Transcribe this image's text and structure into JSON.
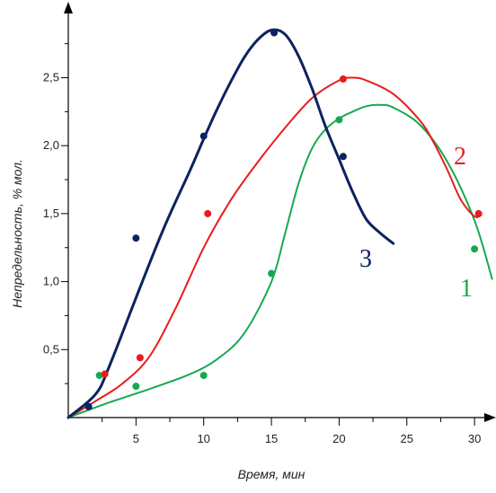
{
  "chart_data": {
    "type": "line",
    "title": "",
    "xlabel": "Время, мин",
    "ylabel": "Непредельность, % мол.",
    "xlim": [
      0,
      31.5
    ],
    "ylim": [
      0,
      2.95
    ],
    "x_ticks": [
      {
        "value": 5,
        "label": "5"
      },
      {
        "value": 10,
        "label": "10"
      },
      {
        "value": 15,
        "label": "15"
      },
      {
        "value": 20,
        "label": "20"
      },
      {
        "value": 25,
        "label": "25"
      },
      {
        "value": 30,
        "label": "30"
      }
    ],
    "x_minor_step": 2.5,
    "y_ticks": [
      {
        "value": 0.5,
        "label": "0,5"
      },
      {
        "value": 1.0,
        "label": "1,0"
      },
      {
        "value": 1.5,
        "label": "1,5"
      },
      {
        "value": 2.0,
        "label": "2,0"
      },
      {
        "value": 2.5,
        "label": "2,5"
      }
    ],
    "y_minor_step": 0.25,
    "grid": false,
    "series": [
      {
        "name": "1",
        "color": "#18a850",
        "points": [
          [
            2.3,
            0.31
          ],
          [
            5.0,
            0.23
          ],
          [
            10.0,
            0.31
          ],
          [
            15.0,
            1.06
          ],
          [
            20.0,
            2.19
          ],
          [
            30.0,
            1.24
          ]
        ],
        "curve": [
          [
            0,
            0
          ],
          [
            3,
            0.11
          ],
          [
            6,
            0.21
          ],
          [
            9,
            0.32
          ],
          [
            11,
            0.43
          ],
          [
            13,
            0.62
          ],
          [
            15,
            1.0
          ],
          [
            16,
            1.35
          ],
          [
            17,
            1.72
          ],
          [
            18,
            1.98
          ],
          [
            19,
            2.12
          ],
          [
            20,
            2.2
          ],
          [
            21,
            2.25
          ],
          [
            22,
            2.29
          ],
          [
            23,
            2.3
          ],
          [
            24,
            2.28
          ],
          [
            26,
            2.15
          ],
          [
            28,
            1.88
          ],
          [
            30,
            1.45
          ],
          [
            31.3,
            1.02
          ]
        ]
      },
      {
        "name": "2",
        "color": "#e81c1c",
        "points": [
          [
            2.7,
            0.32
          ],
          [
            5.3,
            0.44
          ],
          [
            10.3,
            1.5
          ],
          [
            20.3,
            2.49
          ],
          [
            30.3,
            1.5
          ]
        ],
        "curve": [
          [
            0,
            0
          ],
          [
            2,
            0.12
          ],
          [
            4,
            0.25
          ],
          [
            6,
            0.45
          ],
          [
            8,
            0.82
          ],
          [
            10,
            1.25
          ],
          [
            12,
            1.6
          ],
          [
            14,
            1.88
          ],
          [
            16,
            2.13
          ],
          [
            18,
            2.35
          ],
          [
            20,
            2.48
          ],
          [
            21,
            2.5
          ],
          [
            22,
            2.48
          ],
          [
            24,
            2.38
          ],
          [
            26,
            2.18
          ],
          [
            27,
            2.02
          ],
          [
            28,
            1.82
          ],
          [
            29,
            1.6
          ],
          [
            30,
            1.48
          ],
          [
            30.5,
            1.49
          ]
        ]
      },
      {
        "name": "3",
        "color": "#0d2260",
        "points": [
          [
            1.5,
            0.08
          ],
          [
            5.0,
            1.32
          ],
          [
            10.0,
            2.07
          ],
          [
            15.2,
            2.83
          ],
          [
            20.3,
            1.92
          ]
        ],
        "curve": [
          [
            0,
            0
          ],
          [
            2,
            0.17
          ],
          [
            3,
            0.37
          ],
          [
            5,
            0.88
          ],
          [
            7,
            1.38
          ],
          [
            9,
            1.82
          ],
          [
            10,
            2.05
          ],
          [
            11,
            2.27
          ],
          [
            12,
            2.47
          ],
          [
            13,
            2.65
          ],
          [
            14,
            2.78
          ],
          [
            15,
            2.85
          ],
          [
            16,
            2.82
          ],
          [
            17,
            2.66
          ],
          [
            18,
            2.42
          ],
          [
            19,
            2.14
          ],
          [
            20,
            1.9
          ],
          [
            21,
            1.66
          ],
          [
            22,
            1.46
          ],
          [
            23,
            1.36
          ],
          [
            24,
            1.28
          ]
        ]
      }
    ]
  }
}
